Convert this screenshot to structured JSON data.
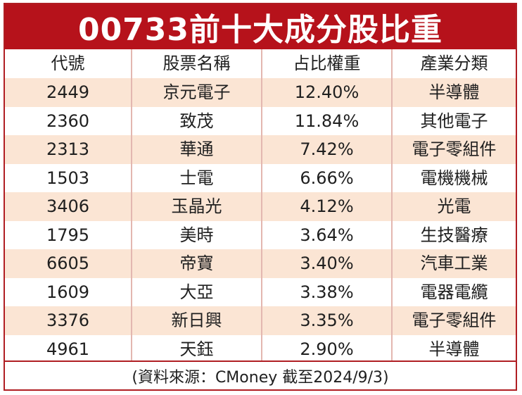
{
  "title": "00733前十大成分股比重",
  "columns": [
    "代號",
    "股票名稱",
    "占比權重",
    "產業分類"
  ],
  "rows": [
    {
      "code": "2449",
      "name": "京元電子",
      "weight": "12.40%",
      "industry": "半導體"
    },
    {
      "code": "2360",
      "name": "致茂",
      "weight": "11.84%",
      "industry": "其他電子"
    },
    {
      "code": "2313",
      "name": "華通",
      "weight": "7.42%",
      "industry": "電子零組件"
    },
    {
      "code": "1503",
      "name": "士電",
      "weight": "6.66%",
      "industry": "電機機械"
    },
    {
      "code": "3406",
      "name": "玉晶光",
      "weight": "4.12%",
      "industry": "光電"
    },
    {
      "code": "1795",
      "name": "美時",
      "weight": "3.64%",
      "industry": "生技醫療"
    },
    {
      "code": "6605",
      "name": "帝寶",
      "weight": "3.40%",
      "industry": "汽車工業"
    },
    {
      "code": "1609",
      "name": "大亞",
      "weight": "3.38%",
      "industry": "電器電纜"
    },
    {
      "code": "3376",
      "name": "新日興",
      "weight": "3.35%",
      "industry": "電子零組件"
    },
    {
      "code": "4961",
      "name": "天鈺",
      "weight": "2.90%",
      "industry": "半導體"
    }
  ],
  "footer": "(資料來源：CMoney 截至2024/9/3)",
  "colors": {
    "header_red": "#b6121b",
    "stripe": "#fbe5d4",
    "divider": "#e3b7b0"
  }
}
